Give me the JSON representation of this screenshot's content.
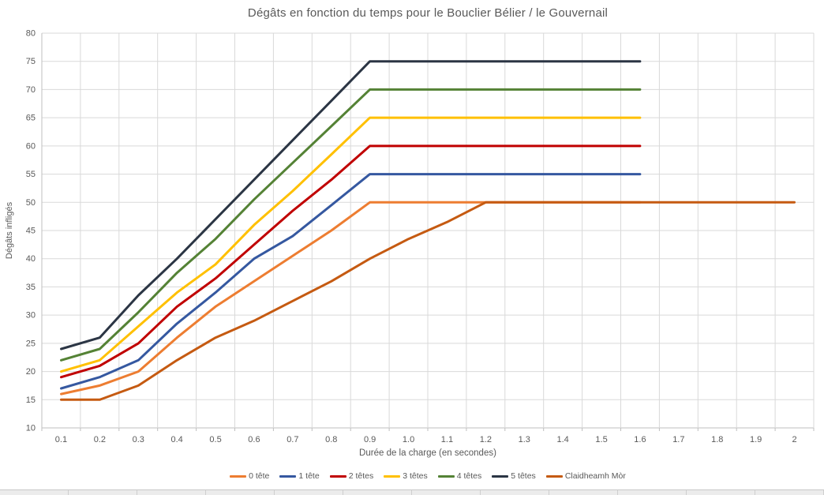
{
  "chart_data": {
    "type": "line",
    "title": "Dégâts en fonction du temps pour le Bouclier Bélier / le Gouvernail",
    "xlabel": "Durée de la charge (en secondes)",
    "ylabel": "Dégâts infligés",
    "x_ticks": [
      "0.1",
      "0.2",
      "0.3",
      "0.4",
      "0.5",
      "0.6",
      "0.7",
      "0.8",
      "0.9",
      "1.0",
      "1.1",
      "1.2",
      "1.3",
      "1.4",
      "1.5",
      "1.6",
      "1.7",
      "1.8",
      "1.9",
      "2"
    ],
    "ylim": [
      10,
      80
    ],
    "y_tick_step": 5,
    "grid": true,
    "legend_position": "bottom",
    "colors": {
      "grid": "#D9D9D9",
      "axis": "#BFBFBF",
      "text": "#595959"
    },
    "series": [
      {
        "name": "0 tête",
        "color": "#ED7D31",
        "values": [
          16,
          17.5,
          20,
          26,
          31.5,
          36,
          40.5,
          45,
          50,
          50,
          50,
          50,
          50,
          50,
          50,
          50,
          null,
          null,
          null,
          null
        ]
      },
      {
        "name": "1 tête",
        "color": "#3558A0",
        "values": [
          17,
          19,
          22,
          28.5,
          34,
          40,
          44,
          49.5,
          55,
          55,
          55,
          55,
          55,
          55,
          55,
          55,
          null,
          null,
          null,
          null
        ]
      },
      {
        "name": "2 têtes",
        "color": "#C00000",
        "values": [
          19,
          21,
          25,
          31.5,
          36.5,
          42.5,
          48.5,
          54,
          60,
          60,
          60,
          60,
          60,
          60,
          60,
          60,
          null,
          null,
          null,
          null
        ]
      },
      {
        "name": "3 têtes",
        "color": "#FFC000",
        "values": [
          20,
          22,
          28,
          34,
          39,
          46,
          52,
          58.5,
          65,
          65,
          65,
          65,
          65,
          65,
          65,
          65,
          null,
          null,
          null,
          null
        ]
      },
      {
        "name": "4 têtes",
        "color": "#548235",
        "values": [
          22,
          24,
          30.5,
          37.5,
          43.5,
          50.5,
          57,
          63.5,
          70,
          70,
          70,
          70,
          70,
          70,
          70,
          70,
          null,
          null,
          null,
          null
        ]
      },
      {
        "name": "5 têtes",
        "color": "#2B3544",
        "values": [
          24,
          26,
          33.5,
          40,
          47,
          54,
          61,
          68,
          75,
          75,
          75,
          75,
          75,
          75,
          75,
          75,
          null,
          null,
          null,
          null
        ]
      },
      {
        "name": "Claidheamh Mòr",
        "color": "#C55A11",
        "values": [
          15,
          15,
          17.5,
          22,
          26,
          29,
          32.5,
          36,
          40,
          43.5,
          46.5,
          50,
          50,
          50,
          50,
          50,
          50,
          50,
          50,
          50
        ]
      }
    ]
  }
}
